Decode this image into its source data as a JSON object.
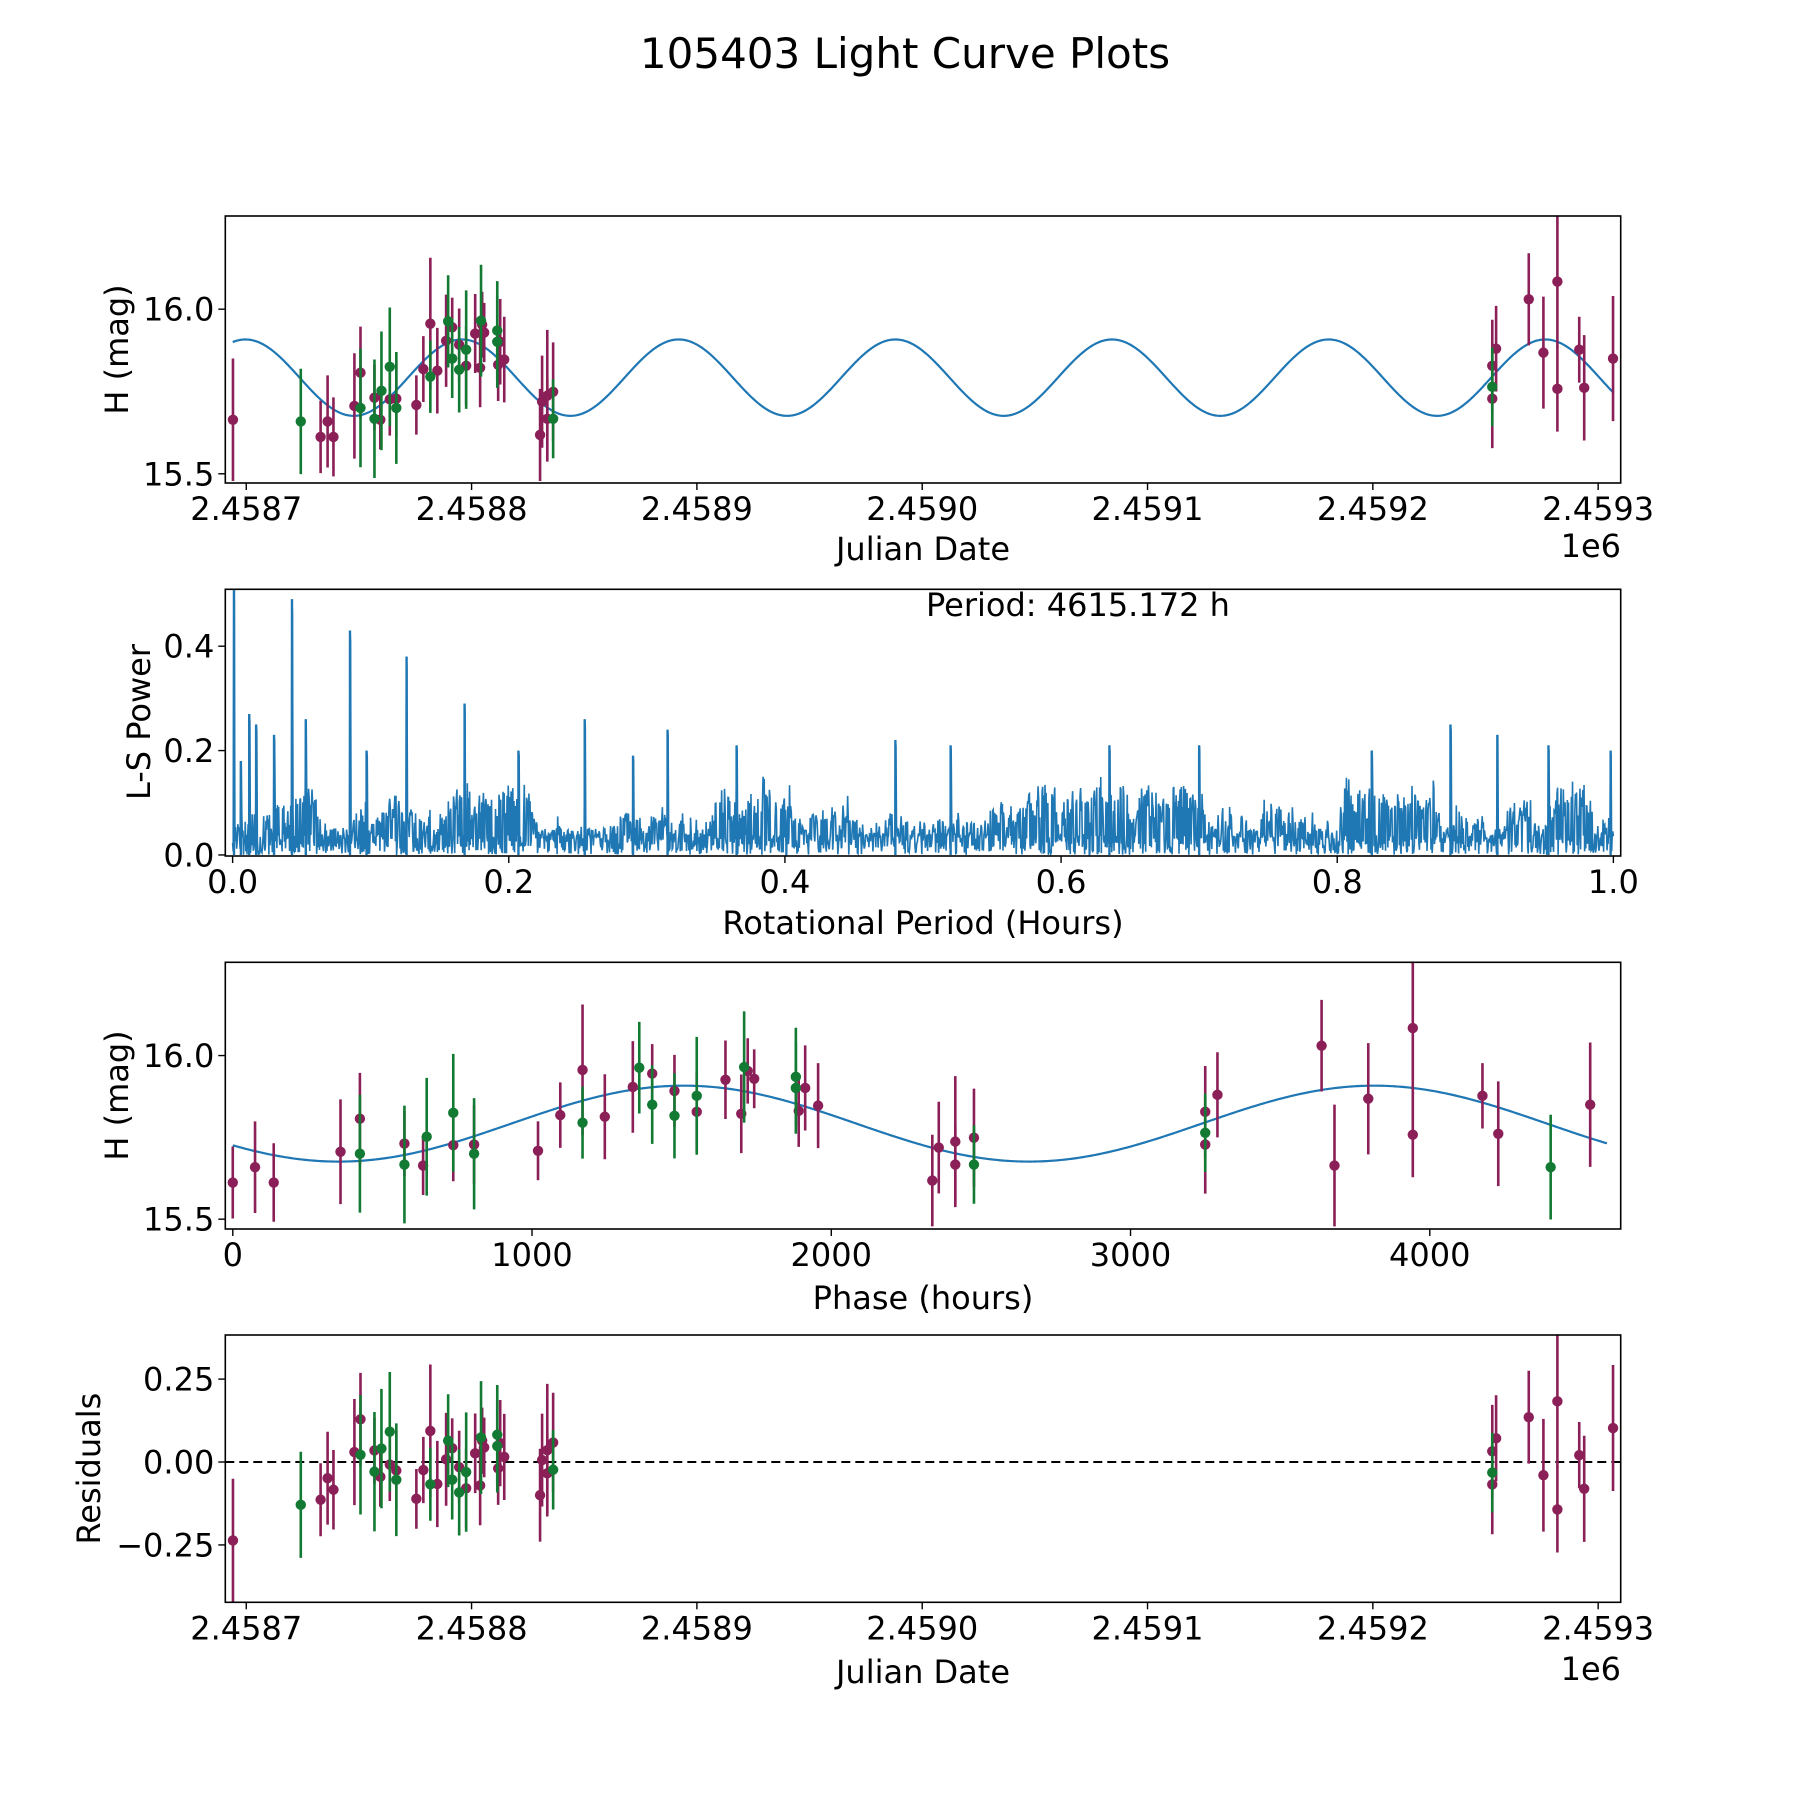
{
  "figure": {
    "title": "105403 Light Curve Plots"
  },
  "colors": {
    "filter_a": "#8b1f57",
    "filter_b": "#137a33",
    "model": "#1f77b4",
    "periodogram": "#1f77b4"
  },
  "chart_data": [
    {
      "id": "light-curve",
      "type": "scatter",
      "title": "",
      "xlabel": "Julian Date",
      "ylabel": "H (mag)",
      "x_offset_label": "1e6",
      "xlim": [
        2458690.7,
        2459310.0
      ],
      "ylim": [
        15.472,
        16.283
      ],
      "xticks": [
        2458700,
        2458800,
        2458900,
        2459000,
        2459100,
        2459200,
        2459300
      ],
      "xtick_labels": [
        "2.4587",
        "2.4588",
        "2.4589",
        "2.4590",
        "2.4591",
        "2.4592",
        "2.4593"
      ],
      "yticks": [
        15.5,
        16.0
      ],
      "ytick_labels": [
        "15.5",
        "16.0"
      ],
      "grid": false,
      "series": [
        {
          "name": "filter_a",
          "color": "#8b1f57",
          "points": [
            {
              "jd": 2458694.1,
              "mag": 15.664,
              "err": 0.186
            },
            {
              "jd": 2458733.0,
              "mag": 15.612,
              "err": 0.11
            },
            {
              "jd": 2458736.1,
              "mag": 15.659,
              "err": 0.14
            },
            {
              "jd": 2458738.7,
              "mag": 15.612,
              "err": 0.12
            },
            {
              "jd": 2458748.0,
              "mag": 15.706,
              "err": 0.16
            },
            {
              "jd": 2458750.7,
              "mag": 15.807,
              "err": 0.14
            },
            {
              "jd": 2458756.9,
              "mag": 15.731,
              "err": 0.1
            },
            {
              "jd": 2458759.5,
              "mag": 15.664,
              "err": 0.09
            },
            {
              "jd": 2458763.7,
              "mag": 15.726,
              "err": 0.11
            },
            {
              "jd": 2458766.6,
              "mag": 15.728,
              "err": 0.12
            },
            {
              "jd": 2458775.5,
              "mag": 15.709,
              "err": 0.09
            },
            {
              "jd": 2458778.6,
              "mag": 15.818,
              "err": 0.1
            },
            {
              "jd": 2458781.7,
              "mag": 15.956,
              "err": 0.2
            },
            {
              "jd": 2458784.8,
              "mag": 15.813,
              "err": 0.13
            },
            {
              "jd": 2458788.7,
              "mag": 15.904,
              "err": 0.14
            },
            {
              "jd": 2458791.4,
              "mag": 15.945,
              "err": 0.09
            },
            {
              "jd": 2458794.5,
              "mag": 15.892,
              "err": 0.11
            },
            {
              "jd": 2458797.6,
              "mag": 15.828,
              "err": 0.12
            },
            {
              "jd": 2458801.6,
              "mag": 15.926,
              "err": 0.12
            },
            {
              "jd": 2458803.8,
              "mag": 15.822,
              "err": 0.12
            },
            {
              "jd": 2458804.7,
              "mag": 15.953,
              "err": 0.1
            },
            {
              "jd": 2458805.6,
              "mag": 15.929,
              "err": 0.09
            },
            {
              "jd": 2458811.8,
              "mag": 15.831,
              "err": 0.11
            },
            {
              "jd": 2458812.7,
              "mag": 15.901,
              "err": 0.13
            },
            {
              "jd": 2458814.5,
              "mag": 15.847,
              "err": 0.13
            },
            {
              "jd": 2458830.4,
              "mag": 15.618,
              "err": 0.14
            },
            {
              "jd": 2458831.3,
              "mag": 15.719,
              "err": 0.14
            },
            {
              "jd": 2458833.6,
              "mag": 15.737,
              "err": 0.2
            },
            {
              "jd": 2458833.6,
              "mag": 15.667,
              "err": 0.12
            },
            {
              "jd": 2458836.2,
              "mag": 15.749,
              "err": 0.15
            },
            {
              "jd": 2459253.0,
              "mag": 15.828,
              "err": 0.14
            },
            {
              "jd": 2459253.0,
              "mag": 15.728,
              "err": 0.15
            },
            {
              "jd": 2459254.7,
              "mag": 15.88,
              "err": 0.13
            },
            {
              "jd": 2459269.2,
              "mag": 16.03,
              "err": 0.14
            },
            {
              "jd": 2459275.7,
              "mag": 15.868,
              "err": 0.17
            },
            {
              "jd": 2459281.9,
              "mag": 16.084,
              "err": 0.2
            },
            {
              "jd": 2459281.9,
              "mag": 15.758,
              "err": 0.13
            },
            {
              "jd": 2459291.6,
              "mag": 15.877,
              "err": 0.1
            },
            {
              "jd": 2459293.8,
              "mag": 15.761,
              "err": 0.16
            },
            {
              "jd": 2459306.6,
              "mag": 15.85,
              "err": 0.19
            }
          ]
        },
        {
          "name": "filter_b",
          "color": "#137a33",
          "points": [
            {
              "jd": 2458724.2,
              "mag": 15.659,
              "err": 0.16
            },
            {
              "jd": 2458750.7,
              "mag": 15.7,
              "err": 0.18
            },
            {
              "jd": 2458756.9,
              "mag": 15.667,
              "err": 0.18
            },
            {
              "jd": 2458760.0,
              "mag": 15.752,
              "err": 0.18
            },
            {
              "jd": 2458763.7,
              "mag": 15.825,
              "err": 0.18
            },
            {
              "jd": 2458766.6,
              "mag": 15.7,
              "err": 0.17
            },
            {
              "jd": 2458781.7,
              "mag": 15.795,
              "err": 0.11
            },
            {
              "jd": 2458789.6,
              "mag": 15.963,
              "err": 0.14
            },
            {
              "jd": 2458791.4,
              "mag": 15.85,
              "err": 0.12
            },
            {
              "jd": 2458794.5,
              "mag": 15.816,
              "err": 0.13
            },
            {
              "jd": 2458797.6,
              "mag": 15.877,
              "err": 0.18
            },
            {
              "jd": 2458804.2,
              "mag": 15.965,
              "err": 0.17
            },
            {
              "jd": 2458811.4,
              "mag": 15.935,
              "err": 0.15
            },
            {
              "jd": 2458811.4,
              "mag": 15.901,
              "err": 0.14
            },
            {
              "jd": 2458836.2,
              "mag": 15.667,
              "err": 0.12
            },
            {
              "jd": 2459253.0,
              "mag": 15.764,
              "err": 0.12
            }
          ]
        }
      ],
      "model": {
        "type": "sinusoid",
        "mean_mag": 15.792,
        "amplitude_mag": 0.116,
        "period_days": 96.149,
        "peak_jd": 2458988.1
      }
    },
    {
      "id": "periodogram",
      "type": "line",
      "title": "",
      "xlabel": "Rotational Period (Hours)",
      "ylabel": "L-S Power",
      "annotation": "Period: 4615.172 h",
      "xlim": [
        -0.0053,
        1.0053
      ],
      "ylim": [
        -0.002,
        0.509
      ],
      "xticks": [
        0.0,
        0.2,
        0.4,
        0.6,
        0.8,
        1.0
      ],
      "xtick_labels": [
        "0.0",
        "0.2",
        "0.4",
        "0.6",
        "0.8",
        "1.0"
      ],
      "yticks": [
        0.0,
        0.2,
        0.4
      ],
      "ytick_labels": [
        "0.0",
        "0.2",
        "0.4"
      ],
      "grid": false,
      "x_range": [
        0.0,
        1.0
      ],
      "noise": {
        "floor": 0.04,
        "typical_max": 0.15,
        "samples": 2400
      },
      "peaks": [
        {
          "x": 0.001,
          "power": 0.51
        },
        {
          "x": 0.006,
          "power": 0.18
        },
        {
          "x": 0.012,
          "power": 0.27
        },
        {
          "x": 0.017,
          "power": 0.25
        },
        {
          "x": 0.03,
          "power": 0.23
        },
        {
          "x": 0.043,
          "power": 0.49
        },
        {
          "x": 0.053,
          "power": 0.26
        },
        {
          "x": 0.085,
          "power": 0.43
        },
        {
          "x": 0.097,
          "power": 0.2
        },
        {
          "x": 0.126,
          "power": 0.38
        },
        {
          "x": 0.168,
          "power": 0.29
        },
        {
          "x": 0.207,
          "power": 0.2
        },
        {
          "x": 0.255,
          "power": 0.26
        },
        {
          "x": 0.29,
          "power": 0.19
        },
        {
          "x": 0.315,
          "power": 0.24
        },
        {
          "x": 0.365,
          "power": 0.21
        },
        {
          "x": 0.48,
          "power": 0.22
        },
        {
          "x": 0.52,
          "power": 0.21
        },
        {
          "x": 0.635,
          "power": 0.21
        },
        {
          "x": 0.7,
          "power": 0.21
        },
        {
          "x": 0.825,
          "power": 0.2
        },
        {
          "x": 0.882,
          "power": 0.25
        },
        {
          "x": 0.916,
          "power": 0.23
        },
        {
          "x": 0.953,
          "power": 0.21
        },
        {
          "x": 0.998,
          "power": 0.2
        }
      ]
    },
    {
      "id": "phased-light-curve",
      "type": "scatter",
      "title": "",
      "xlabel": "Phase (hours)",
      "ylabel": "H (mag)",
      "xlim": [
        -25,
        4638
      ],
      "ylim": [
        15.47,
        16.285
      ],
      "xticks": [
        0,
        1000,
        2000,
        3000,
        4000
      ],
      "xtick_labels": [
        "0",
        "1000",
        "2000",
        "3000",
        "4000"
      ],
      "yticks": [
        15.5,
        16.0
      ],
      "ytick_labels": [
        "15.5",
        "16.0"
      ],
      "grid": false,
      "fold": {
        "period_hours": 4615.172,
        "epoch_jd": 2458733.0
      },
      "source": "light-curve"
    },
    {
      "id": "residuals",
      "type": "scatter",
      "title": "",
      "xlabel": "Julian Date",
      "ylabel": "Residuals",
      "x_offset_label": "1e6",
      "xlim": [
        2458690.7,
        2459310.0
      ],
      "ylim": [
        -0.423,
        0.383
      ],
      "xticks": [
        2458700,
        2458800,
        2458900,
        2459000,
        2459100,
        2459200,
        2459300
      ],
      "xtick_labels": [
        "2.4587",
        "2.4588",
        "2.4589",
        "2.4590",
        "2.4591",
        "2.4592",
        "2.4593"
      ],
      "yticks": [
        -0.25,
        0.0,
        0.25
      ],
      "ytick_labels": [
        "−0.25",
        "0.00",
        "0.25"
      ],
      "grid": false,
      "reference_line": 0.0,
      "source": "light-curve minus model"
    }
  ]
}
